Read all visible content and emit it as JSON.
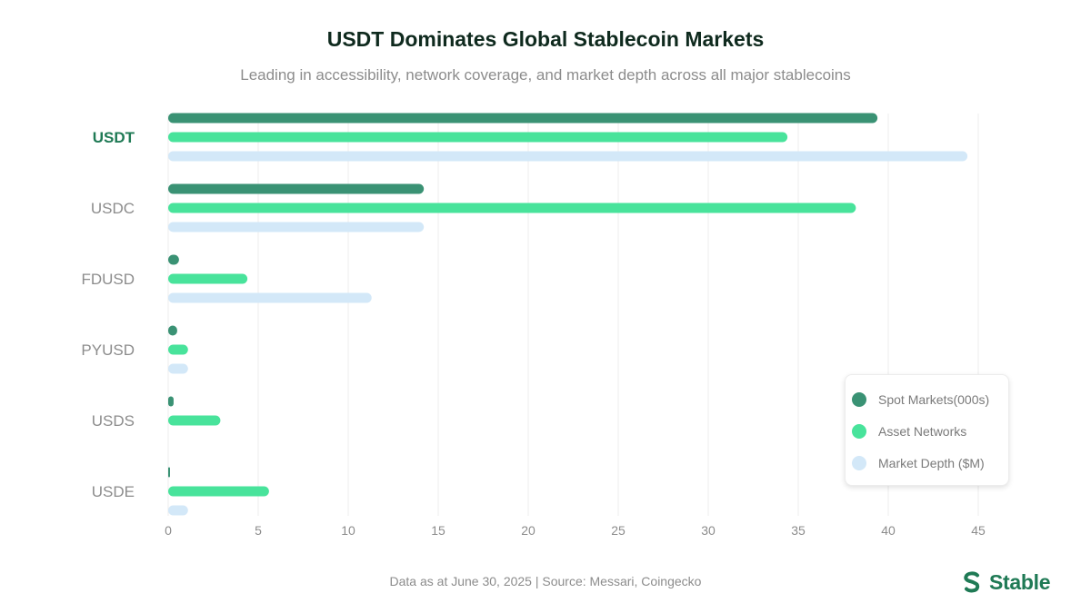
{
  "header": {
    "title": "USDT Dominates Global Stablecoin Markets",
    "subtitle": "Leading in accessibility, network coverage, and market depth across all major stablecoins"
  },
  "chart_data": {
    "type": "bar",
    "orientation": "horizontal",
    "categories": [
      "USDT",
      "USDC",
      "FDUSD",
      "PYUSD",
      "USDS",
      "USDE"
    ],
    "highlight_category": "USDT",
    "series": [
      {
        "name": "Spot Markets(000s)",
        "color": "#3a9274",
        "values": [
          39.4,
          14.2,
          0.6,
          0.5,
          0.3,
          0.1
        ]
      },
      {
        "name": "Asset Networks",
        "color": "#48e39b",
        "values": [
          34.4,
          38.2,
          4.4,
          1.1,
          2.9,
          5.6
        ]
      },
      {
        "name": "Market Depth ($M)",
        "color": "#d3e8f8",
        "values": [
          44.4,
          14.2,
          11.3,
          1.1,
          0,
          1.1
        ]
      }
    ],
    "x_ticks": [
      0,
      5,
      10,
      15,
      20,
      25,
      30,
      35,
      40,
      45
    ],
    "xlim": [
      0,
      45
    ],
    "grid": "vertical",
    "legend": "bottom-right"
  },
  "footer": {
    "note": "Data as at June 30, 2025 | Source: Messari, Coingecko",
    "brand": "Stable"
  },
  "colors": {
    "brand": "#1f7a55",
    "highlight_label": "#1f7a55",
    "axis_text": "#8c8c8c"
  }
}
